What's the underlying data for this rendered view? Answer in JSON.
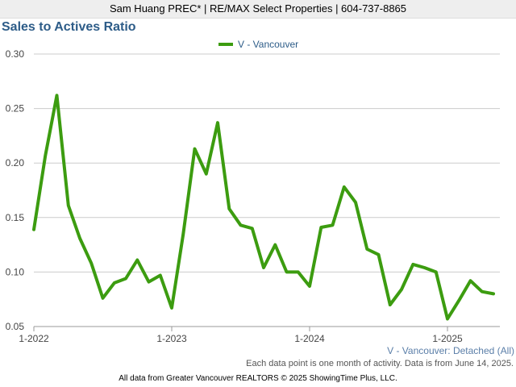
{
  "header": {
    "text": "Sam Huang PREC* | RE/MAX Select Properties | 604-737-8865"
  },
  "chart_data": {
    "type": "line",
    "title": "Sales to Actives Ratio",
    "subtitle": "V - Vancouver: Detached (All)",
    "xlabel": "",
    "ylabel": "",
    "ylim": [
      0.05,
      0.3
    ],
    "yticks": [
      "0.05",
      "0.10",
      "0.15",
      "0.20",
      "0.25",
      "0.30"
    ],
    "xticks": [
      "1-2022",
      "1-2023",
      "1-2024",
      "1-2025"
    ],
    "grid": true,
    "legend_position": "top-center",
    "series": [
      {
        "name": "V - Vancouver",
        "color": "#3c9c10",
        "x": [
          "2022-01",
          "2022-02",
          "2022-03",
          "2022-04",
          "2022-05",
          "2022-06",
          "2022-07",
          "2022-08",
          "2022-09",
          "2022-10",
          "2022-11",
          "2022-12",
          "2023-01",
          "2023-02",
          "2023-03",
          "2023-04",
          "2023-05",
          "2023-06",
          "2023-07",
          "2023-08",
          "2023-09",
          "2023-10",
          "2023-11",
          "2023-12",
          "2024-01",
          "2024-02",
          "2024-03",
          "2024-04",
          "2024-05",
          "2024-06",
          "2024-07",
          "2024-08",
          "2024-09",
          "2024-10",
          "2024-11",
          "2024-12",
          "2025-01",
          "2025-02",
          "2025-03",
          "2025-04",
          "2025-05"
        ],
        "values": [
          0.139,
          0.207,
          0.262,
          0.161,
          0.131,
          0.108,
          0.076,
          0.09,
          0.094,
          0.111,
          0.091,
          0.097,
          0.067,
          0.135,
          0.213,
          0.19,
          0.237,
          0.158,
          0.143,
          0.14,
          0.104,
          0.125,
          0.1,
          0.1,
          0.087,
          0.141,
          0.143,
          0.178,
          0.164,
          0.121,
          0.116,
          0.07,
          0.084,
          0.107,
          0.104,
          0.1,
          0.057,
          0.074,
          0.092,
          0.082,
          0.08
        ]
      }
    ]
  },
  "note": "Each data point is one month of activity. Data is from June 14, 2025.",
  "footer": "All data from Greater Vancouver REALTORS © 2025 ShowingTime Plus, LLC."
}
